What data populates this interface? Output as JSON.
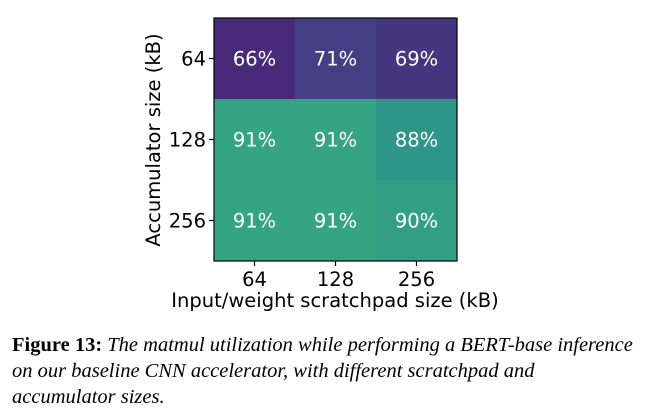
{
  "chart_data": {
    "type": "heatmap",
    "title": "",
    "xlabel": "Input/weight scratchpad size (kB)",
    "ylabel": "Accumulator size (kB)",
    "x_categories": [
      "64",
      "128",
      "256"
    ],
    "y_categories": [
      "64",
      "128",
      "256"
    ],
    "values": [
      [
        66,
        71,
        69
      ],
      [
        91,
        91,
        88
      ],
      [
        91,
        91,
        90
      ]
    ],
    "value_labels": [
      [
        "66%",
        "71%",
        "69%"
      ],
      [
        "91%",
        "91%",
        "88%"
      ],
      [
        "91%",
        "91%",
        "90%"
      ]
    ],
    "unit": "%",
    "colormap": "viridis",
    "vmin": 66,
    "vmax": 91,
    "colors": {
      "low": "#472b7a",
      "high": "#35a483",
      "text": "#ffffff"
    }
  },
  "caption": {
    "label": "Figure 13:",
    "text": "The matmul utilization while performing a BERT-base inference on our baseline CNN accelerator, with different scratchpad and accumulator sizes."
  }
}
